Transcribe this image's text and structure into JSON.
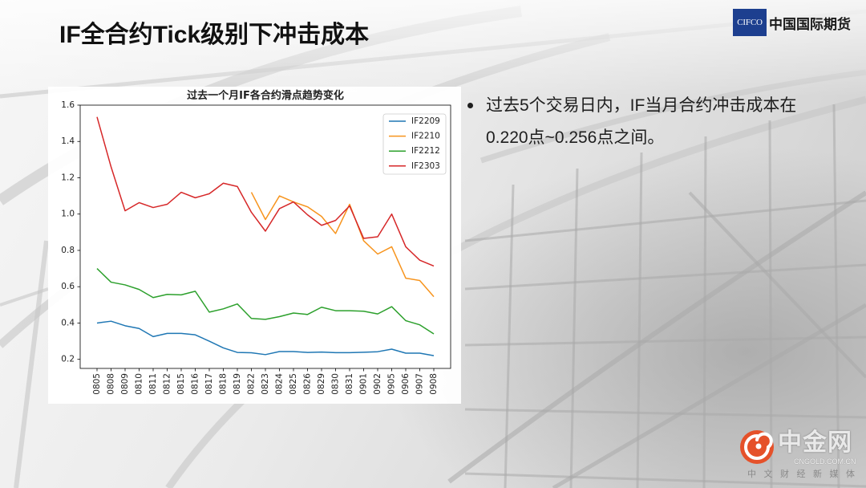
{
  "slide": {
    "title": "IF全合约Tick级别下冲击成本",
    "bullets": [
      "过去5个交易日内，IF当月合约冲击成本在0.220点~0.256点之间。"
    ]
  },
  "logo": {
    "badge_text": "CIFCO",
    "name": "中国国际期货",
    "badge_color": "#1d3f8f"
  },
  "watermark": {
    "name": "中金网",
    "domain": "CNGOLD.COM.CN",
    "tagline": "中 文 财 经 新 媒 体",
    "emblem_color": "#e5512a",
    "emblem_icon": "swirl-logo-icon"
  },
  "chart_data": {
    "type": "line",
    "title": "过去一个月IF各合约滑点趋势变化",
    "categories": [
      "0805",
      "0808",
      "0809",
      "0810",
      "0811",
      "0812",
      "0815",
      "0816",
      "0817",
      "0818",
      "0819",
      "0822",
      "0823",
      "0824",
      "0825",
      "0826",
      "0829",
      "0830",
      "0831",
      "0901",
      "0902",
      "0905",
      "0906",
      "0907",
      "0908"
    ],
    "yticks": [
      "0.2",
      "0.4",
      "0.6",
      "0.8",
      "1.0",
      "1.2",
      "1.4",
      "1.6"
    ],
    "ylim": [
      0.15,
      1.6
    ],
    "grid": false,
    "legend": "top-right",
    "series": [
      {
        "name": "IF2209",
        "color": "#1f77b4",
        "values": [
          0.4,
          0.41,
          0.385,
          0.37,
          0.325,
          0.343,
          0.343,
          0.335,
          0.3,
          0.263,
          0.238,
          0.236,
          0.226,
          0.243,
          0.243,
          0.238,
          0.24,
          0.237,
          0.237,
          0.239,
          0.242,
          0.256,
          0.234,
          0.234,
          0.22
        ]
      },
      {
        "name": "IF2210",
        "color": "#f7941d",
        "values": [
          null,
          null,
          null,
          null,
          null,
          null,
          null,
          null,
          null,
          null,
          null,
          1.12,
          0.97,
          1.1,
          1.067,
          1.04,
          0.987,
          0.893,
          1.054,
          0.853,
          0.78,
          0.82,
          0.647,
          0.634,
          0.545
        ]
      },
      {
        "name": "IF2212",
        "color": "#2ca02c",
        "values": [
          0.7,
          0.625,
          0.61,
          0.585,
          0.54,
          0.558,
          0.555,
          0.575,
          0.46,
          0.478,
          0.505,
          0.425,
          0.42,
          0.435,
          0.455,
          0.447,
          0.487,
          0.468,
          0.468,
          0.465,
          0.45,
          0.49,
          0.413,
          0.39,
          0.34
        ]
      },
      {
        "name": "IF2303",
        "color": "#d62728",
        "values": [
          1.535,
          1.26,
          1.018,
          1.063,
          1.036,
          1.054,
          1.12,
          1.09,
          1.112,
          1.17,
          1.152,
          1.01,
          0.906,
          1.03,
          1.067,
          0.996,
          0.938,
          0.965,
          1.045,
          0.866,
          0.875,
          1.0,
          0.82,
          0.746,
          0.714
        ]
      }
    ]
  }
}
